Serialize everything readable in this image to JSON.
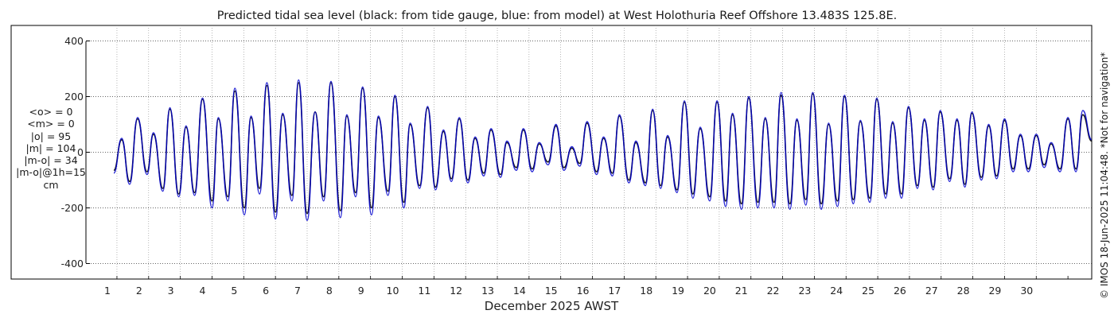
{
  "chart_data": {
    "type": "line",
    "title": "Predicted tidal sea level (black: from tide gauge, blue: from model) at West Holothuria Reef Offshore 13.483S 125.8E.",
    "xlabel": "December 2025 AWST",
    "ylabel": "",
    "xlim": [
      0,
      31
    ],
    "ylim": [
      -430,
      430
    ],
    "yticks": [
      -400,
      -200,
      0,
      200,
      400
    ],
    "xticks": [
      1,
      2,
      3,
      4,
      5,
      6,
      7,
      8,
      9,
      10,
      11,
      12,
      13,
      14,
      15,
      16,
      17,
      18,
      19,
      20,
      21,
      22,
      23,
      24,
      25,
      26,
      27,
      28,
      29,
      30
    ],
    "grid": true,
    "series": [
      {
        "name": "from tide gauge",
        "color": "#000000",
        "x": [
          0.15,
          0.4,
          0.65,
          0.9,
          1.2,
          1.4,
          1.7,
          1.92,
          2.2,
          2.43,
          2.7,
          2.95,
          3.25,
          3.45,
          3.75,
          3.97,
          4.27,
          4.48,
          4.75,
          4.98,
          5.25,
          5.48,
          5.77,
          5.98,
          6.25,
          6.5,
          6.77,
          7.0,
          7.3,
          7.5,
          7.78,
          8.0,
          8.28,
          8.5,
          8.8,
          9.02,
          9.3,
          9.5,
          9.8,
          10.05,
          10.3,
          10.55,
          10.8,
          11.05,
          11.32,
          11.55,
          11.82,
          12.05,
          12.35,
          12.55,
          12.85,
          13.07,
          13.35,
          13.57,
          13.85,
          14.1,
          14.35,
          14.6,
          14.85,
          15.08,
          15.38,
          15.6,
          15.88,
          16.1,
          16.4,
          16.62,
          16.92,
          17.15,
          17.4,
          17.62,
          17.92,
          18.15,
          18.42,
          18.65,
          18.95,
          19.18,
          19.45,
          19.67,
          19.95,
          20.18,
          20.47,
          20.7,
          20.98,
          21.2,
          21.48,
          21.7,
          21.98,
          22.2,
          22.47,
          22.7,
          22.98,
          23.2,
          23.48,
          23.7,
          24.0,
          24.22,
          24.5,
          24.72,
          25.0,
          25.22,
          25.5,
          25.72,
          26.0,
          26.22,
          26.52,
          26.75,
          27.0,
          27.22,
          27.52,
          27.75,
          28.0,
          28.25,
          28.52,
          28.75,
          29.0,
          29.25,
          29.5,
          29.72,
          30.0,
          30.25,
          30.5,
          30.72,
          31.0
        ],
        "values": [
          -65,
          45,
          -105,
          120,
          -70,
          65,
          -130,
          155,
          -150,
          90,
          -145,
          190,
          -175,
          120,
          -160,
          220,
          -200,
          125,
          -130,
          240,
          -215,
          135,
          -155,
          250,
          -220,
          145,
          -160,
          250,
          -210,
          130,
          -145,
          230,
          -200,
          125,
          -140,
          200,
          -180,
          100,
          -120,
          160,
          -125,
          75,
          -95,
          120,
          -100,
          50,
          -75,
          80,
          -80,
          35,
          -55,
          80,
          -60,
          30,
          -35,
          95,
          -55,
          15,
          -40,
          105,
          -70,
          50,
          -75,
          130,
          -100,
          35,
          -110,
          150,
          -120,
          55,
          -135,
          180,
          -150,
          85,
          -160,
          180,
          -175,
          135,
          -185,
          195,
          -180,
          120,
          -180,
          205,
          -185,
          115,
          -170,
          210,
          -185,
          100,
          -175,
          200,
          -170,
          110,
          -165,
          190,
          -150,
          105,
          -150,
          160,
          -120,
          115,
          -125,
          145,
          -95,
          115,
          -115,
          140,
          -90,
          95,
          -85,
          115,
          -60,
          60,
          -60,
          60,
          -45,
          30,
          -60,
          120,
          -60,
          135,
          40
        ]
      },
      {
        "name": "from model",
        "color": "#0000cc",
        "x": [
          0.15,
          0.4,
          0.65,
          0.9,
          1.2,
          1.4,
          1.7,
          1.92,
          2.2,
          2.43,
          2.7,
          2.95,
          3.25,
          3.45,
          3.75,
          3.97,
          4.27,
          4.48,
          4.75,
          4.98,
          5.25,
          5.48,
          5.77,
          5.98,
          6.25,
          6.5,
          6.77,
          7.0,
          7.3,
          7.5,
          7.78,
          8.0,
          8.28,
          8.5,
          8.8,
          9.02,
          9.3,
          9.5,
          9.8,
          10.05,
          10.3,
          10.55,
          10.8,
          11.05,
          11.32,
          11.55,
          11.82,
          12.05,
          12.35,
          12.55,
          12.85,
          13.07,
          13.35,
          13.57,
          13.85,
          14.1,
          14.35,
          14.6,
          14.85,
          15.08,
          15.38,
          15.6,
          15.88,
          16.1,
          16.4,
          16.62,
          16.92,
          17.15,
          17.4,
          17.62,
          17.92,
          18.15,
          18.42,
          18.65,
          18.95,
          19.18,
          19.45,
          19.67,
          19.95,
          20.18,
          20.47,
          20.7,
          20.98,
          21.2,
          21.48,
          21.7,
          21.98,
          22.2,
          22.47,
          22.7,
          22.98,
          23.2,
          23.48,
          23.7,
          24.0,
          24.22,
          24.5,
          24.72,
          25.0,
          25.22,
          25.5,
          25.72,
          26.0,
          26.22,
          26.52,
          26.75,
          27.0,
          27.22,
          27.52,
          27.75,
          28.0,
          28.25,
          28.52,
          28.75,
          29.0,
          29.25,
          29.5,
          29.72,
          30.0,
          30.25,
          30.5,
          30.72,
          31.0
        ],
        "values": [
          -75,
          50,
          -115,
          125,
          -80,
          70,
          -140,
          160,
          -160,
          95,
          -155,
          195,
          -200,
          125,
          -175,
          230,
          -225,
          130,
          -150,
          250,
          -240,
          140,
          -175,
          260,
          -245,
          145,
          -175,
          255,
          -235,
          135,
          -160,
          235,
          -225,
          130,
          -155,
          205,
          -200,
          105,
          -130,
          165,
          -135,
          80,
          -105,
          125,
          -110,
          55,
          -85,
          85,
          -90,
          40,
          -65,
          85,
          -70,
          35,
          -45,
          100,
          -65,
          20,
          -50,
          110,
          -80,
          55,
          -85,
          135,
          -110,
          40,
          -120,
          155,
          -130,
          60,
          -145,
          185,
          -165,
          90,
          -175,
          185,
          -195,
          140,
          -205,
          200,
          -200,
          125,
          -200,
          215,
          -205,
          120,
          -190,
          215,
          -205,
          105,
          -195,
          205,
          -185,
          115,
          -180,
          195,
          -165,
          110,
          -165,
          165,
          -130,
          120,
          -135,
          150,
          -105,
          120,
          -125,
          145,
          -100,
          100,
          -95,
          120,
          -70,
          65,
          -70,
          65,
          -55,
          35,
          -70,
          125,
          -70,
          150,
          45
        ]
      }
    ],
    "stats": [
      "<o> = 0",
      "<m> = 0",
      "|o| = 95",
      "|m| = 104",
      "|m-o| = 34",
      "|m-o|@1h=15",
      "cm"
    ],
    "credit": "© IMOS 18-Jun-2025 11:04:48. *Not for navigation*"
  }
}
